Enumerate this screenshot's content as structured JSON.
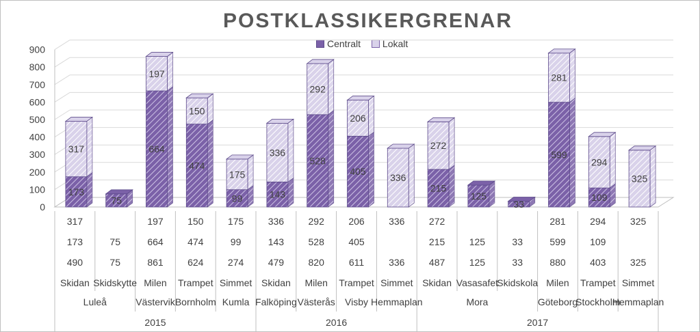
{
  "chart_data": {
    "type": "bar",
    "title": "POSTKLASSIKERGRENAR",
    "ylim": [
      0,
      900
    ],
    "yticks": [
      "0",
      "100",
      "200",
      "300",
      "400",
      "500",
      "600",
      "700",
      "800",
      "900"
    ],
    "grid": true,
    "legend_position": "top-center",
    "colors": {
      "centralt": "#7b61a8",
      "lokalt": "#d9d2ea",
      "edge": "#5c4a8a",
      "grid": "#d9d9d9",
      "axis": "#bfbfbf",
      "text": "#404040"
    },
    "series": [
      {
        "name": "Centralt",
        "values": [
          173,
          75,
          664,
          474,
          99,
          143,
          528,
          405,
          null,
          215,
          125,
          33,
          599,
          109,
          null
        ]
      },
      {
        "name": "Lokalt",
        "values": [
          317,
          null,
          197,
          150,
          175,
          336,
          292,
          206,
          336,
          272,
          null,
          null,
          281,
          294,
          325
        ]
      }
    ],
    "table": {
      "rows": [
        [
          "317",
          "",
          "197",
          "150",
          "175",
          "336",
          "292",
          "206",
          "336",
          "272",
          "",
          "",
          "281",
          "294",
          "325"
        ],
        [
          "173",
          "75",
          "664",
          "474",
          "99",
          "143",
          "528",
          "405",
          "",
          "215",
          "125",
          "33",
          "599",
          "109",
          ""
        ],
        [
          "490",
          "75",
          "861",
          "624",
          "274",
          "479",
          "820",
          "611",
          "336",
          "487",
          "125",
          "33",
          "880",
          "403",
          "325"
        ]
      ]
    },
    "categories": [
      {
        "race": "Skidan",
        "place": "Luleå"
      },
      {
        "race": "Skidskytte",
        "place": ""
      },
      {
        "race": "Milen",
        "place": "Västervik"
      },
      {
        "race": "Trampet",
        "place": "Bornholm"
      },
      {
        "race": "Simmet",
        "place": "Kumla"
      },
      {
        "race": "Skidan",
        "place": "Falköping"
      },
      {
        "race": "Milen",
        "place": "Västerås"
      },
      {
        "race": "Trampet",
        "place": "Visby"
      },
      {
        "race": "Simmet",
        "place": "Hemmaplan"
      },
      {
        "race": "Skidan",
        "place": "Mora"
      },
      {
        "race": "Vasasafet",
        "place": ""
      },
      {
        "race": "Skidskola",
        "place": ""
      },
      {
        "race": "Milen",
        "place": "Göteborg"
      },
      {
        "race": "Trampet",
        "place": "Stockholm"
      },
      {
        "race": "Simmet",
        "place": "Hemmaplan"
      }
    ],
    "years": [
      {
        "label": "2015",
        "from": 0,
        "to": 4
      },
      {
        "label": "2016",
        "from": 5,
        "to": 8
      },
      {
        "label": "2017",
        "from": 9,
        "to": 14
      }
    ],
    "place_groups": [
      {
        "label": "Luleå",
        "from": 0,
        "to": 1
      },
      {
        "label": "Västervik",
        "from": 2,
        "to": 2
      },
      {
        "label": "Bornholm",
        "from": 3,
        "to": 3
      },
      {
        "label": "Kumla",
        "from": 4,
        "to": 4
      },
      {
        "label": "Falköping",
        "from": 5,
        "to": 5
      },
      {
        "label": "Västerås",
        "from": 6,
        "to": 6
      },
      {
        "label": "Visby",
        "from": 7,
        "to": 7
      },
      {
        "label": "Hemmaplan",
        "from": 8,
        "to": 8
      },
      {
        "label": "Mora",
        "from": 9,
        "to": 11
      },
      {
        "label": "Göteborg",
        "from": 12,
        "to": 12
      },
      {
        "label": "Stockholm",
        "from": 13,
        "to": 13
      },
      {
        "label": "Hemmaplan",
        "from": 14,
        "to": 14
      }
    ]
  }
}
